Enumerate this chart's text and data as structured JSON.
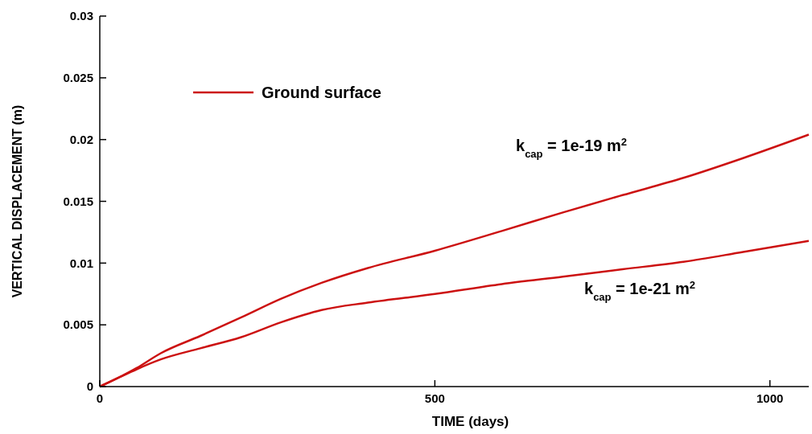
{
  "chart_data": {
    "type": "line",
    "xlabel": "TIME (days)",
    "ylabel": "VERTICAL DISPLACEMENT (m)",
    "xlim": [
      0,
      1058
    ],
    "xticks": [
      0,
      500,
      1000
    ],
    "ylim": [
      0,
      0.03
    ],
    "yticks": [
      0,
      0.005,
      0.01,
      0.015,
      0.02,
      0.025,
      0.03
    ],
    "legend": "top left",
    "grid": false,
    "marker": "none",
    "line_style": "solid",
    "series": [
      {
        "name": "Ground surface",
        "color": "#cc1111",
        "x": [
          0,
          31,
          55,
          91,
          150,
          211,
          270,
          331,
          400,
          500,
          600,
          691,
          780,
          871,
          960,
          1058
        ],
        "values": [
          0,
          0.0008,
          0.0015,
          0.0027,
          0.0041,
          0.0056,
          0.0071,
          0.0084,
          0.0096,
          0.011,
          0.0126,
          0.0141,
          0.0155,
          0.0169,
          0.0185,
          0.0204
        ]
      },
      {
        "color": "#cc1111",
        "x": [
          0,
          31,
          55,
          91,
          150,
          211,
          270,
          331,
          400,
          500,
          600,
          691,
          780,
          871,
          960,
          1058
        ],
        "values": [
          0,
          0.0008,
          0.0014,
          0.0022,
          0.0031,
          0.004,
          0.0052,
          0.0062,
          0.0068,
          0.0075,
          0.0083,
          0.0089,
          0.0095,
          0.0101,
          0.0109,
          0.0118
        ]
      }
    ],
    "annotations": [
      "k$_{cap}$ = 1e-19 m$^{2}$",
      "k$_{cap}$ = 1e-21 m$^{2}$"
    ]
  }
}
